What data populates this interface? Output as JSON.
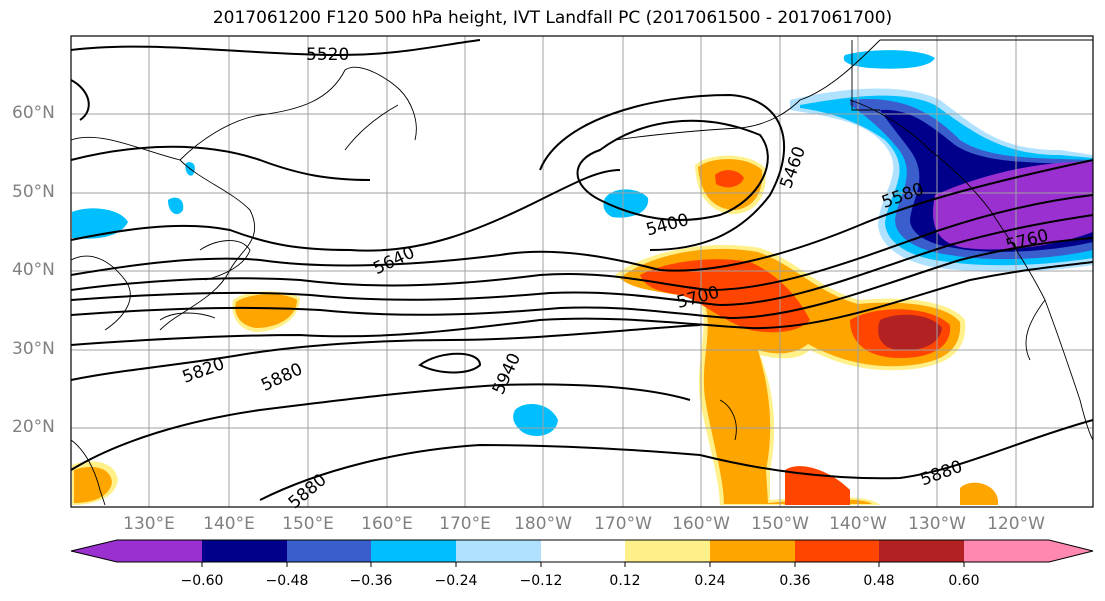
{
  "title": "2017061200 F120 500 hPa height, IVT Landfall PC (2017061500 - 2017061700)",
  "map": {
    "lat_labels": [
      "60°N",
      "50°N",
      "40°N",
      "30°N",
      "20°N"
    ],
    "lon_labels": [
      "130°E",
      "140°E",
      "150°E",
      "160°E",
      "170°E",
      "180°W",
      "170°W",
      "160°W",
      "150°W",
      "140°W",
      "130°W",
      "120°W"
    ],
    "contour_labels": [
      "5520",
      "5460",
      "5400",
      "5580",
      "5640",
      "5700",
      "5760",
      "5820",
      "5880",
      "5940",
      "5880",
      "5880"
    ],
    "contour_interval_note": ""
  },
  "colorbar": {
    "ticks": [
      "−0.60",
      "−0.48",
      "−0.36",
      "−0.24",
      "−0.12",
      "0.12",
      "0.24",
      "0.36",
      "0.48",
      "0.60"
    ],
    "colors": [
      "#9b30d0",
      "#00008b",
      "#3a5fcd",
      "#00bfff",
      "#b0e2ff",
      "#ffffff",
      "#fff08a",
      "#ffa500",
      "#ff4500",
      "#b22222",
      "#ff88b0"
    ]
  }
}
